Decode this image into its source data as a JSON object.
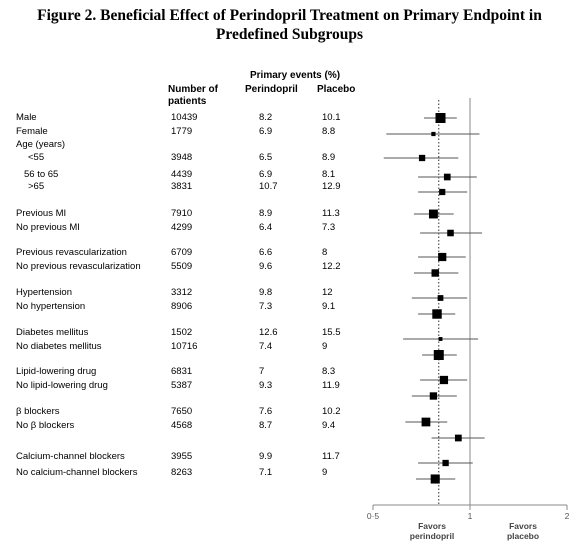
{
  "title_line1": "Figure 2. Beneficial Effect of Perindopril Treatment on Primary Endpoint in",
  "title_line2": "Predefined Subgroups",
  "headers": {
    "primary_events": "Primary events (%)",
    "number_of": "Number of",
    "patients": "patients",
    "perindopril": "Perindopril",
    "placebo": "Placebo"
  },
  "axis": {
    "ticks": [
      "0·5",
      "1",
      "2"
    ],
    "favors_left_1": "Favors",
    "favors_left_2": "perindopril",
    "favors_right_1": "Favors",
    "favors_right_2": "placebo"
  },
  "chart_data": {
    "type": "forest",
    "x_scale": "log",
    "xlim": [
      0.5,
      2
    ],
    "reference_line": 1,
    "overall_effect_line": 0.8,
    "rows": [
      {
        "label": "Male",
        "n": "10439",
        "perindopril": "8.2",
        "placebo": "10.1",
        "hr": 0.81,
        "ci": [
          0.72,
          0.91
        ]
      },
      {
        "label": "Female",
        "n": "1779",
        "perindopril": "6.9",
        "placebo": "8.8",
        "hr": 0.77,
        "ci": [
          0.55,
          1.07
        ]
      },
      {
        "label": "Age (years)",
        "n": "",
        "perindopril": "",
        "placebo": "",
        "hr": null,
        "ci": null
      },
      {
        "label": "<55",
        "n": "3948",
        "perindopril": "6.5",
        "placebo": "8.9",
        "hr": 0.71,
        "ci": [
          0.54,
          0.92
        ]
      },
      {
        "label": "56 to 65",
        "n": "4439",
        "perindopril": "6.9",
        "placebo": "8.1",
        "hr": 0.85,
        "ci": [
          0.69,
          1.05
        ]
      },
      {
        "label": ">65",
        "n": "3831",
        "perindopril": "10.7",
        "placebo": "12.9",
        "hr": 0.82,
        "ci": [
          0.69,
          0.98
        ]
      },
      {
        "label": "Previous MI",
        "n": "7910",
        "perindopril": "8.9",
        "placebo": "11.3",
        "hr": 0.77,
        "ci": [
          0.67,
          0.89
        ]
      },
      {
        "label": "No previous MI",
        "n": "4299",
        "perindopril": "6.4",
        "placebo": "7.3",
        "hr": 0.87,
        "ci": [
          0.7,
          1.09
        ]
      },
      {
        "label": "Previous revascularization",
        "n": "6709",
        "perindopril": "6.6",
        "placebo": "8",
        "hr": 0.82,
        "ci": [
          0.69,
          0.97
        ]
      },
      {
        "label": "No previous revascularization",
        "n": "5509",
        "perindopril": "9.6",
        "placebo": "12.2",
        "hr": 0.78,
        "ci": [
          0.67,
          0.92
        ]
      },
      {
        "label": "Hypertension",
        "n": "3312",
        "perindopril": "9.8",
        "placebo": "12",
        "hr": 0.81,
        "ci": [
          0.66,
          0.98
        ]
      },
      {
        "label": "No hypertension",
        "n": "8906",
        "perindopril": "7.3",
        "placebo": "9.1",
        "hr": 0.79,
        "ci": [
          0.69,
          0.9
        ]
      },
      {
        "label": "Diabetes mellitus",
        "n": "1502",
        "perindopril": "12.6",
        "placebo": "15.5",
        "hr": 0.81,
        "ci": [
          0.62,
          1.06
        ]
      },
      {
        "label": "No diabetes mellitus",
        "n": "10716",
        "perindopril": "7.4",
        "placebo": "9",
        "hr": 0.8,
        "ci": [
          0.71,
          0.91
        ]
      },
      {
        "label": "Lipid-lowering drug",
        "n": "6831",
        "perindopril": "7",
        "placebo": "8.3",
        "hr": 0.83,
        "ci": [
          0.7,
          0.98
        ]
      },
      {
        "label": "No lipid-lowering drug",
        "n": "5387",
        "perindopril": "9.3",
        "placebo": "11.9",
        "hr": 0.77,
        "ci": [
          0.66,
          0.91
        ]
      },
      {
        "label": "β blockers",
        "n": "7650",
        "perindopril": "7.6",
        "placebo": "10.2",
        "hr": 0.73,
        "ci": [
          0.63,
          0.85
        ]
      },
      {
        "label": "No β blockers",
        "n": "4568",
        "perindopril": "8.7",
        "placebo": "9.4",
        "hr": 0.92,
        "ci": [
          0.76,
          1.11
        ]
      },
      {
        "label": "Calcium-channel blockers",
        "n": "3955",
        "perindopril": "9.9",
        "placebo": "11.7",
        "hr": 0.84,
        "ci": [
          0.69,
          1.02
        ]
      },
      {
        "label": "No calcium-channel blockers",
        "n": "8263",
        "perindopril": "7.1",
        "placebo": "9",
        "hr": 0.78,
        "ci": [
          0.68,
          0.9
        ]
      }
    ]
  }
}
